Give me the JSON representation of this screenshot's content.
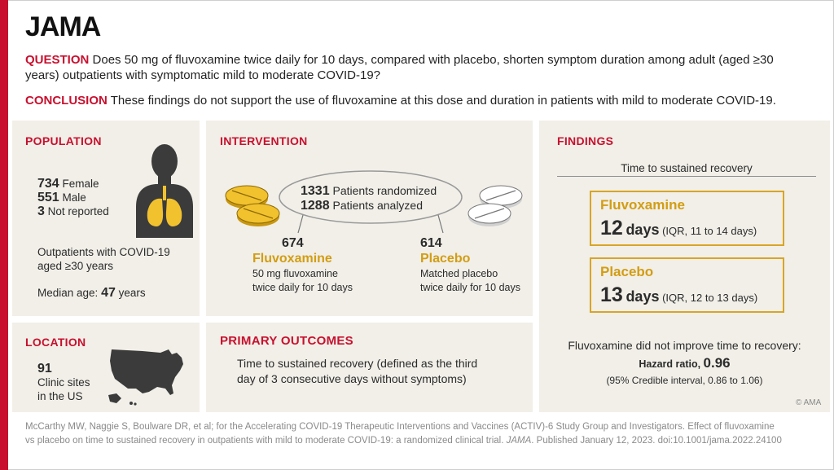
{
  "header": {
    "logo": "JAMA",
    "question_label": "QUESTION",
    "question_text": "Does 50 mg of fluvoxamine twice daily for 10 days, compared with placebo, shorten symptom duration among adult (aged ≥30 years) outpatients with symptomatic mild to moderate COVID-19?",
    "conclusion_label": "CONCLUSION",
    "conclusion_text": "These findings do not support the use of fluvoxamine at this dose and duration in patients with mild to moderate COVID-19."
  },
  "population": {
    "title": "POPULATION",
    "female_count": "734",
    "female_label": "Female",
    "male_count": "551",
    "male_label": "Male",
    "notreported_count": "3",
    "notreported_label": "Not reported",
    "desc_line1": "Outpatients with COVID-19",
    "desc_line2": "aged ≥30 years",
    "median_label": "Median age:",
    "median_value": "47",
    "median_unit": "years"
  },
  "location": {
    "title": "LOCATION",
    "count": "91",
    "line1": "Clinic sites",
    "line2": "in the US"
  },
  "intervention": {
    "title": "INTERVENTION",
    "randomized_count": "1331",
    "randomized_label": "Patients randomized",
    "analyzed_count": "1288",
    "analyzed_label": "Patients analyzed",
    "arm1_count": "674",
    "arm1_name": "Fluvoxamine",
    "arm1_line1": "50 mg fluvoxamine",
    "arm1_line2": "twice daily for 10 days",
    "arm2_count": "614",
    "arm2_name": "Placebo",
    "arm2_line1": "Matched placebo",
    "arm2_line2": "twice daily for 10 days"
  },
  "outcomes": {
    "title": "PRIMARY OUTCOMES",
    "line1": "Time to sustained recovery (defined as the third",
    "line2": "day of 3 consecutive days without symptoms)"
  },
  "findings": {
    "title": "FINDINGS",
    "subtitle": "Time to sustained recovery",
    "fluvox_label": "Fluvoxamine",
    "fluvox_days": "12",
    "fluvox_unit": "days",
    "fluvox_iqr": "(IQR, 11 to 14 days)",
    "placebo_label": "Placebo",
    "placebo_days": "13",
    "placebo_unit": "days",
    "placebo_iqr": "(IQR, 12 to 13 days)",
    "summary": "Fluvoxamine did not improve time to recovery:",
    "hr_label": "Hazard ratio,",
    "hr_value": "0.96",
    "ci_text": "(95% Credible interval, 0.86 to 1.06)",
    "copyright": "© AMA"
  },
  "footer": {
    "line1": "McCarthy MW, Naggie S, Boulware DR, et al; for the Accelerating COVID-19 Therapeutic Interventions and Vaccines (ACTIV)-6 Study Group and Investigators. Effect of fluvoxamine",
    "line2_pre": "vs placebo on time to sustained recovery in outpatients with mild to moderate COVID-19: a randomized clinical trial.",
    "line2_journal": "JAMA",
    "line2_post": ". Published January 12, 2023. doi:10.1001/jama.2022.24100"
  },
  "colors": {
    "accent_red": "#c8102e",
    "gold": "#d39d13",
    "panel_bg": "#f1efe8"
  },
  "icons": [
    "person-lungs-icon",
    "us-map-icon",
    "fluvoxamine-pills-icon",
    "placebo-pills-icon"
  ]
}
